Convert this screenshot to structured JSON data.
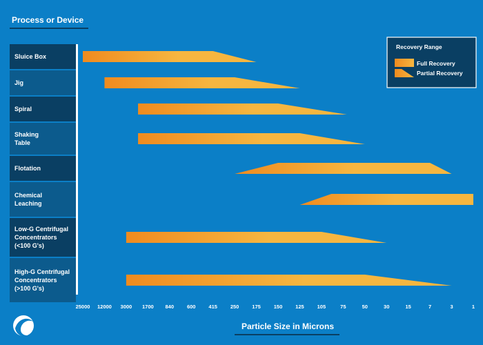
{
  "header": {
    "title": "Process or Device"
  },
  "logo": {
    "icon": "wave-logo-icon"
  },
  "colors": {
    "background": "#0b7fc7",
    "label_dark": "#0a3f63",
    "label_mid": "#0c5b8d",
    "bar_light": "#f6b640",
    "bar_dark": "#f08b1f",
    "text": "#ffffff"
  },
  "chart_data": {
    "type": "range-bar",
    "title": "Process or Device",
    "xlabel": "Particle Size in Microns",
    "x_ticks": [
      "25000",
      "12000",
      "3000",
      "1700",
      "840",
      "600",
      "415",
      "250",
      "175",
      "150",
      "125",
      "105",
      "75",
      "50",
      "30",
      "15",
      "7",
      "3",
      "1"
    ],
    "legend": {
      "title": "Recovery Range",
      "position": "top-right",
      "entries": [
        {
          "name": "Full Recovery",
          "shape": "rectangle"
        },
        {
          "name": "Partial Recovery",
          "shape": "taper"
        }
      ]
    },
    "rows": [
      {
        "label": [
          "Sluice Box"
        ],
        "partial_left": null,
        "full": [
          "25000",
          "415"
        ],
        "partial_right": "175"
      },
      {
        "label": [
          "Jig"
        ],
        "partial_left": null,
        "full": [
          "12000",
          "250"
        ],
        "partial_right": "125"
      },
      {
        "label": [
          "Spiral"
        ],
        "partial_left": null,
        "full": [
          "2200",
          "150"
        ],
        "partial_right": "70"
      },
      {
        "label": [
          "Shaking",
          "Table"
        ],
        "partial_left": null,
        "full": [
          "2200",
          "125"
        ],
        "partial_right": "50"
      },
      {
        "label": [
          "Flotation"
        ],
        "partial_left": "250",
        "full": [
          "150",
          "7"
        ],
        "partial_right": "3"
      },
      {
        "label": [
          "Chemical",
          "Leaching"
        ],
        "partial_left": "125",
        "full": [
          "90",
          "1"
        ],
        "partial_right": null
      },
      {
        "label": [
          "Low-G Centrifugal",
          "Concentrators",
          "(<100 G's)"
        ],
        "partial_left": null,
        "full": [
          "3000",
          "105"
        ],
        "partial_right": "30"
      },
      {
        "label": [
          "High-G Centrifugal",
          "Concentrators",
          "(>100 G's)"
        ],
        "partial_left": null,
        "full": [
          "3000",
          "50"
        ],
        "partial_right": "3"
      }
    ]
  }
}
